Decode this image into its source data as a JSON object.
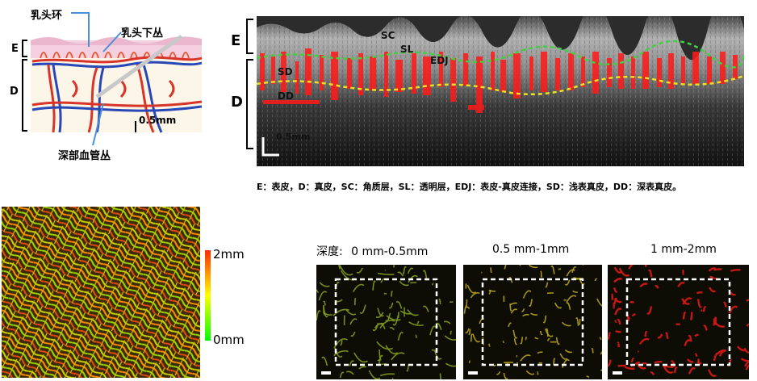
{
  "schematic": {
    "callout_papillary_loop": "乳头环",
    "callout_subpapillary_plexus": "乳头下丛",
    "callout_deep_plexus": "深部血管丛",
    "label_E": "E",
    "label_D": "D",
    "scale_text": "0.5mm"
  },
  "oct": {
    "label_E": "E",
    "label_D": "D",
    "label_SC": "SC",
    "label_SL": "SL",
    "label_EDJ": "EDJ",
    "label_SD": "SD",
    "label_DD": "DD",
    "scale_text": "0.5mm",
    "legend": "E：表皮，D：真皮，SC：角质层，SL：透明层，EDJ：表皮-真皮连接，SD：浅表真皮，DD：深表真皮。"
  },
  "colorbar": {
    "top_label": "2mm",
    "bottom_label": "0mm",
    "colors": {
      "top": "#ff2a00",
      "mid": "#ffff00",
      "bottom": "#00ff00"
    }
  },
  "depth_panels": {
    "prefix": "深度:",
    "panels": [
      {
        "label": "0 mm-0.5mm",
        "tint": "#7f9a1c"
      },
      {
        "label": "0.5 mm-1mm",
        "tint": "#b6a21a"
      },
      {
        "label": "1 mm-2mm",
        "tint": "#d81a12"
      }
    ]
  }
}
